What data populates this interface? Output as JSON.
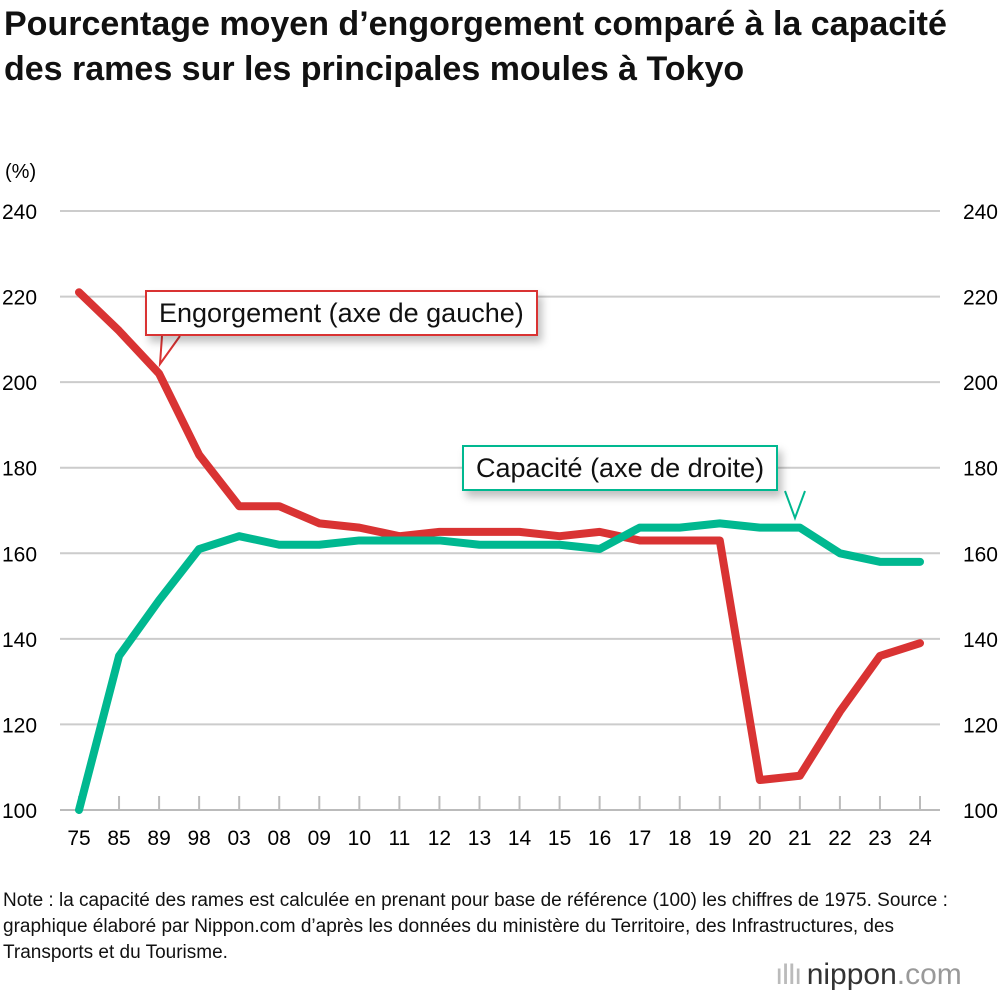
{
  "title": "Pourcentage moyen d’engorgement comparé à la capacité des rames sur les principales moules à Tokyo",
  "note": "Note : la capacité des rames est calculée en prenant pour base de référence (100) les chiffres de 1975. Source : graphique élaboré par Nippon.com d’après les données du ministère du Territoire, des Infrastructures, des Transports et du Tourisme.",
  "logo": {
    "name": "nippon",
    ".com": ".com"
  },
  "chart_data": {
    "type": "line",
    "ylabel": "(%)",
    "ylim": [
      100,
      240
    ],
    "yticks": [
      100,
      120,
      140,
      160,
      180,
      200,
      220,
      240
    ],
    "grid": true,
    "categories": [
      "75",
      "85",
      "89",
      "98",
      "03",
      "08",
      "09",
      "10",
      "11",
      "12",
      "13",
      "14",
      "15",
      "16",
      "17",
      "18",
      "19",
      "20",
      "21",
      "22",
      "23",
      "24"
    ],
    "series": [
      {
        "name": "Engorgement (axe de gauche)",
        "color": "#d93333",
        "axis": "left",
        "values": [
          221,
          212,
          202,
          183,
          171,
          171,
          167,
          166,
          164,
          165,
          165,
          165,
          164,
          165,
          163,
          163,
          163,
          107,
          108,
          123,
          136,
          139
        ]
      },
      {
        "name": "Capacité (axe de droite)",
        "color": "#00b890",
        "axis": "right",
        "values": [
          100,
          136,
          149,
          161,
          164,
          162,
          162,
          163,
          163,
          163,
          162,
          162,
          162,
          161,
          166,
          166,
          167,
          166,
          166,
          160,
          158,
          158
        ]
      }
    ]
  }
}
